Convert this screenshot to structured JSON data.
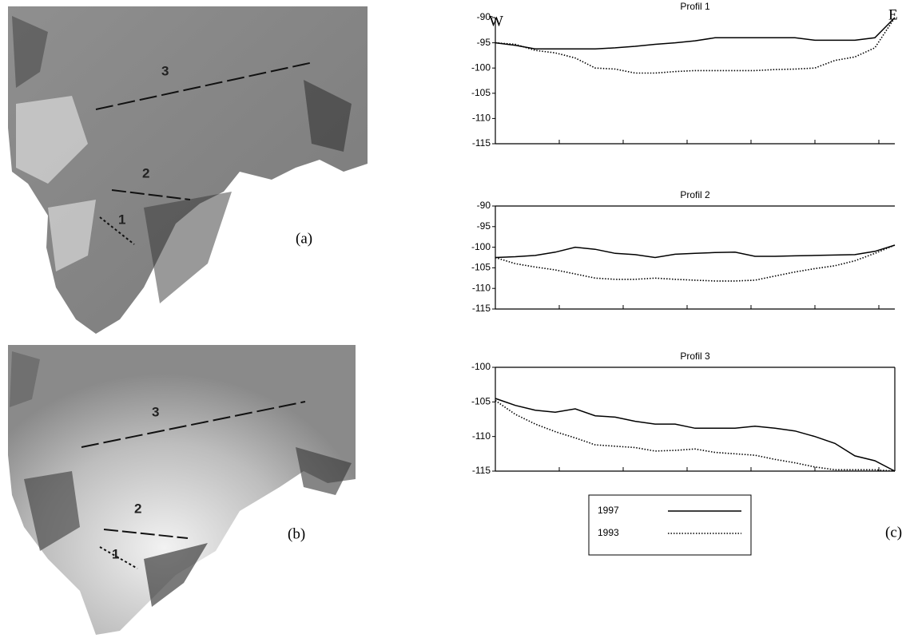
{
  "figure": {
    "panel_labels": [
      "(a)",
      "(b)",
      "(c)"
    ],
    "west": "W",
    "east": "E",
    "profile_numbers_a": [
      "3",
      "2",
      "1"
    ],
    "profile_numbers_b": [
      "3",
      "2",
      "1"
    ]
  },
  "chart_data": [
    {
      "type": "line",
      "title": "Profil 1",
      "categories": [
        null,
        null,
        null,
        null,
        null,
        null,
        null,
        null,
        null,
        null,
        null,
        null,
        null,
        null,
        null,
        null,
        null,
        null,
        null,
        null,
        null
      ],
      "ylim": [
        -115,
        -90
      ],
      "yticks": [
        -90,
        -95,
        -100,
        -105,
        -110,
        -115
      ],
      "series": [
        {
          "name": "1997",
          "color": "#000000",
          "dash": "solid",
          "values": [
            -95,
            -95.5,
            -96.2,
            -96.2,
            -96.2,
            -96.2,
            -96,
            -95.7,
            -95.3,
            -95,
            -94.6,
            -94,
            -94,
            -94,
            -94,
            -94,
            -94.5,
            -94.5,
            -94.5,
            -94,
            -90
          ]
        },
        {
          "name": "1993",
          "color": "#000000",
          "dash": "dotted",
          "values": [
            -95,
            -95.3,
            -96.5,
            -97,
            -98,
            -100,
            -100.2,
            -101,
            -101,
            -100.7,
            -100.5,
            -100.5,
            -100.5,
            -100.5,
            -100.3,
            -100.2,
            -100,
            -98.5,
            -97.8,
            -96,
            -90
          ]
        }
      ]
    },
    {
      "type": "line",
      "title": "Profil 2",
      "categories": [
        null,
        null,
        null,
        null,
        null,
        null,
        null,
        null,
        null,
        null,
        null,
        null,
        null,
        null,
        null,
        null,
        null,
        null,
        null,
        null,
        null
      ],
      "ylim": [
        -115,
        -90
      ],
      "yticks": [
        -90,
        -95,
        -100,
        -105,
        -110,
        -115
      ],
      "series": [
        {
          "color": "#000000",
          "dash": "solid",
          "values": [
            -102.5,
            -102.3,
            -102,
            -101.2,
            -100,
            -100.5,
            -101.5,
            -101.8,
            -102.5,
            -101.7,
            -101.5,
            -101.3,
            -101.2,
            -102.2,
            -102.2,
            -102.1,
            -102,
            -101.9,
            -101.8,
            -101,
            -99.5
          ]
        },
        {
          "color": "#000000",
          "dash": "dotted",
          "values": [
            -102.5,
            -104,
            -104.8,
            -105.5,
            -106.5,
            -107.5,
            -107.8,
            -107.8,
            -107.5,
            -107.8,
            -108,
            -108.2,
            -108.2,
            -108,
            -107,
            -106,
            -105.2,
            -104.5,
            -103.3,
            -101.5,
            -99.5
          ]
        }
      ]
    },
    {
      "type": "line",
      "title": "Profil 3",
      "categories": [
        null,
        null,
        null,
        null,
        null,
        null,
        null,
        null,
        null,
        null,
        null,
        null,
        null,
        null,
        null,
        null,
        null,
        null,
        null,
        null,
        null
      ],
      "ylim": [
        -115,
        -100
      ],
      "yticks": [
        -100,
        -105,
        -110,
        -115
      ],
      "series": [
        {
          "color": "#000000",
          "dash": "solid",
          "values": [
            -104.5,
            -105.5,
            -106.2,
            -106.5,
            -106,
            -107,
            -107.2,
            -107.8,
            -108.2,
            -108.2,
            -108.8,
            -108.8,
            -108.8,
            -108.5,
            -108.8,
            -109.2,
            -110,
            -111,
            -112.8,
            -113.5,
            -115
          ]
        },
        {
          "color": "#000000",
          "dash": "dotted",
          "values": [
            -104.8,
            -106.8,
            -108.2,
            -109.3,
            -110.2,
            -111.2,
            -111.4,
            -111.6,
            -112.1,
            -112,
            -111.8,
            -112.3,
            -112.5,
            -112.7,
            -113.3,
            -113.8,
            -114.4,
            -114.8,
            -114.8,
            -114.8,
            -115
          ]
        }
      ]
    }
  ]
}
